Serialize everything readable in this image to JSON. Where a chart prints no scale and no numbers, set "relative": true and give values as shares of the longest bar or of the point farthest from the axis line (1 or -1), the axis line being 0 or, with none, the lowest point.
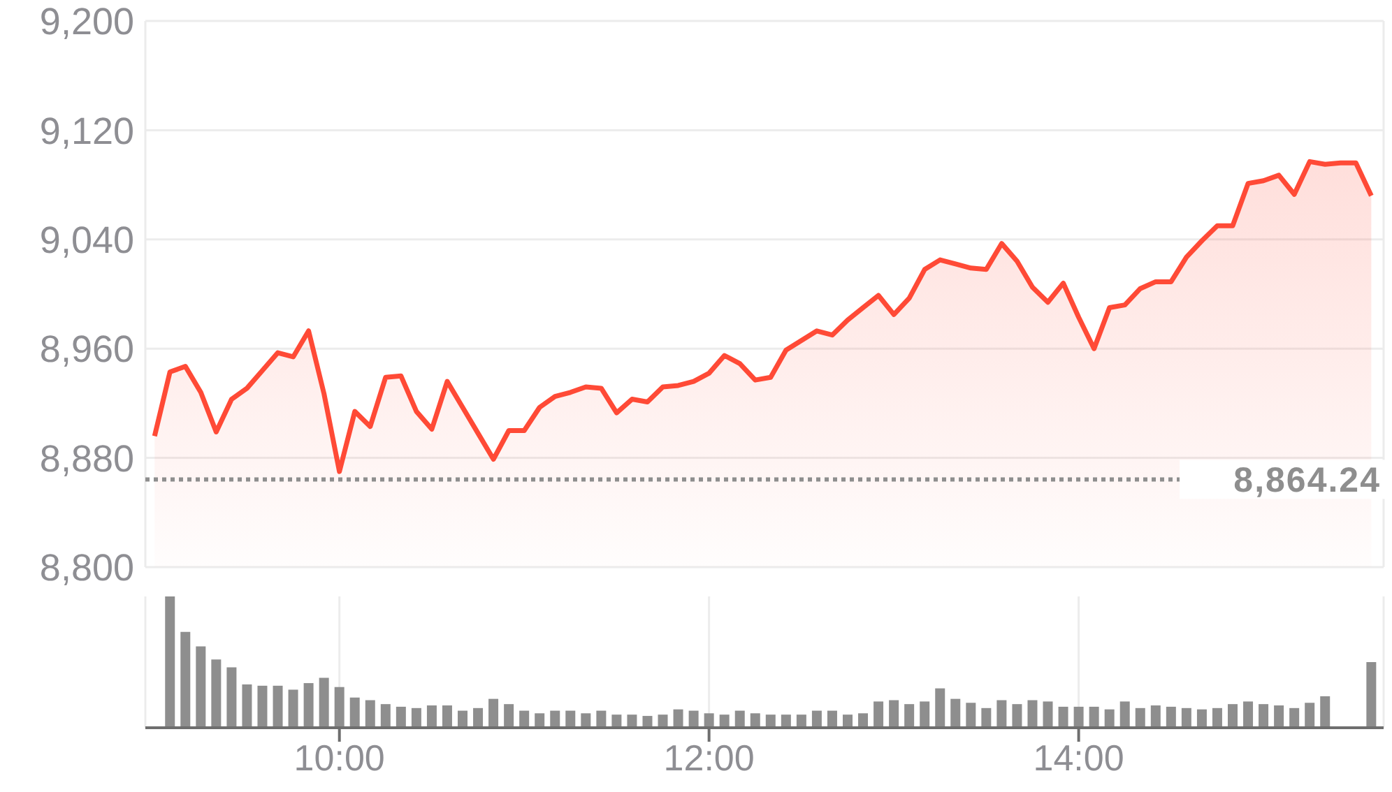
{
  "chart_data": [
    {
      "type": "area",
      "x": [
        9,
        9.0833,
        9.1667,
        9.25,
        9.3333,
        9.4167,
        9.5,
        9.5833,
        9.6667,
        9.75,
        9.8333,
        9.9167,
        10,
        10.0833,
        10.1667,
        10.25,
        10.3333,
        10.4167,
        10.5,
        10.5833,
        10.6667,
        10.75,
        10.8333,
        10.9167,
        11,
        11.0833,
        11.1667,
        11.25,
        11.3333,
        11.4167,
        11.5,
        11.5833,
        11.6667,
        11.75,
        11.8333,
        11.9167,
        12,
        12.0833,
        12.1667,
        12.25,
        12.3333,
        12.4167,
        12.5,
        12.5833,
        12.6667,
        12.75,
        12.8333,
        12.9167,
        13,
        13.0833,
        13.1667,
        13.25,
        13.3333,
        13.4167,
        13.5,
        13.5833,
        13.6667,
        13.75,
        13.8333,
        13.9167,
        14,
        14.0833,
        14.1667,
        14.25,
        14.3333,
        14.4167,
        14.5,
        14.5833,
        14.6667,
        14.75,
        14.8333,
        14.9167,
        15,
        15.0833,
        15.1667,
        15.25,
        15.3333,
        15.4167,
        15.5,
        15.5833
      ],
      "series": [
        {
          "color": "#ff4a36",
          "values": [
            8896,
            8943,
            8947,
            8928,
            8899,
            8923,
            8931,
            8944,
            8957,
            8954,
            8973,
            8927,
            8870,
            8914,
            8903,
            8939,
            8940,
            8914,
            8901,
            8936,
            8917,
            8898,
            8879,
            8900,
            8900,
            8917,
            8925,
            8928,
            8932,
            8931,
            8913,
            8923,
            8921,
            8932,
            8933,
            8936,
            8942,
            8955,
            8949,
            8937,
            8939,
            8959,
            8966,
            8973,
            8970,
            8981,
            8990,
            8999,
            8985,
            8997,
            9018,
            9025,
            9022,
            9019,
            9018,
            9037,
            9024,
            9005,
            8994,
            9008,
            8983,
            8960,
            8990,
            8992,
            9004,
            9009,
            9009,
            9027,
            9039,
            9050,
            9050,
            9081,
            9083,
            9087,
            9073,
            9097,
            9095,
            9096,
            9096,
            9072
          ]
        }
      ],
      "xlim": [
        8.95,
        15.65
      ],
      "xticks": [
        {
          "value": 10,
          "label": null
        },
        {
          "value": 12,
          "label": null
        },
        {
          "value": 14,
          "label": null
        }
      ],
      "ylim": [
        8800,
        9200
      ],
      "yticks": [
        {
          "value": 8800,
          "label": "8,800"
        },
        {
          "value": 8880,
          "label": "8,880"
        },
        {
          "value": 8960,
          "label": "8,960"
        },
        {
          "value": 9040,
          "label": "9,040"
        },
        {
          "value": 9120,
          "label": "9,120"
        },
        {
          "value": 9200,
          "label": "9,200"
        }
      ],
      "ref_lines": [
        {
          "axis": "y",
          "value": 8864.24,
          "label": "8,864.24",
          "color": "#8e8e8e",
          "line_style": "dotted"
        }
      ],
      "grid": true,
      "tick_labels": "y"
    },
    {
      "type": "bar",
      "relative": true,
      "x": [
        9.0833,
        9.1667,
        9.25,
        9.3333,
        9.4167,
        9.5,
        9.5833,
        9.6667,
        9.75,
        9.8333,
        9.9167,
        10,
        10.0833,
        10.1667,
        10.25,
        10.3333,
        10.4167,
        10.5,
        10.5833,
        10.6667,
        10.75,
        10.8333,
        10.9167,
        11,
        11.0833,
        11.1667,
        11.25,
        11.3333,
        11.4167,
        11.5,
        11.5833,
        11.6667,
        11.75,
        11.8333,
        11.9167,
        12,
        12.0833,
        12.1667,
        12.25,
        12.3333,
        12.4167,
        12.5,
        12.5833,
        12.6667,
        12.75,
        12.8333,
        12.9167,
        13,
        13.0833,
        13.1667,
        13.25,
        13.3333,
        13.4167,
        13.5,
        13.5833,
        13.6667,
        13.75,
        13.8333,
        13.9167,
        14,
        14.0833,
        14.1667,
        14.25,
        14.3333,
        14.4167,
        14.5,
        14.5833,
        14.6667,
        14.75,
        14.8333,
        14.9167,
        15,
        15.0833,
        15.1667,
        15.25,
        15.3333,
        15.4167,
        15.5,
        15.5833
      ],
      "series": [
        {
          "color": "#8e8e8e",
          "values": [
            1,
            0.73,
            0.62,
            0.52,
            0.46,
            0.33,
            0.32,
            0.32,
            0.29,
            0.34,
            0.38,
            0.31,
            0.23,
            0.21,
            0.18,
            0.16,
            0.15,
            0.17,
            0.17,
            0.13,
            0.15,
            0.22,
            0.18,
            0.13,
            0.11,
            0.13,
            0.13,
            0.11,
            0.13,
            0.1,
            0.1,
            0.09,
            0.1,
            0.14,
            0.13,
            0.11,
            0.1,
            0.13,
            0.11,
            0.1,
            0.1,
            0.1,
            0.13,
            0.13,
            0.1,
            0.11,
            0.2,
            0.21,
            0.18,
            0.2,
            0.3,
            0.22,
            0.19,
            0.15,
            0.21,
            0.18,
            0.21,
            0.2,
            0.16,
            0.16,
            0.16,
            0.14,
            0.2,
            0.15,
            0.17,
            0.16,
            0.15,
            0.14,
            0.15,
            0.18,
            0.2,
            0.18,
            0.17,
            0.15,
            0.19,
            0.24,
            0.01,
            null,
            0.5
          ]
        }
      ],
      "xlim": [
        8.95,
        15.65
      ],
      "xticks": [
        {
          "value": 10,
          "label": "10:00"
        },
        {
          "value": 12,
          "label": "12:00"
        },
        {
          "value": 14,
          "label": "14:00"
        }
      ],
      "grid": "x"
    }
  ]
}
